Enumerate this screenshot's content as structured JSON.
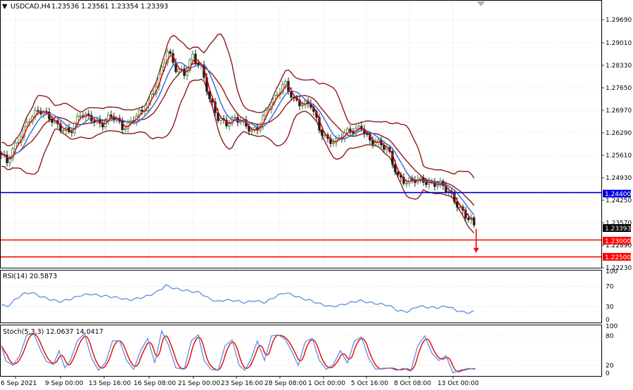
{
  "header": {
    "arrow_glyph": "▼",
    "symbol": "USDCAD,H4",
    "ohlc": "1.23536 1.23561 1.23354 1.23393"
  },
  "colors": {
    "background": "#ffffff",
    "grid": "#c0c0c0",
    "candle_up": "#2e7d32",
    "candle_down": "#1b1b1b",
    "bollinger": "#8b1a1a",
    "ma_fast": "#e60000",
    "ma_slow": "#3f6fd8",
    "support_line": "#0000dd",
    "target_line": "#ff0000",
    "rsi_line": "#5b8fe0",
    "stoch_main": "#5b8fe0",
    "stoch_signal": "#e60000"
  },
  "price_axis": {
    "ticks": [
      "1.29690",
      "1.29010",
      "1.28330",
      "1.27650",
      "1.26970",
      "1.26290",
      "1.25610",
      "1.24930",
      "1.24250",
      "1.23570",
      "1.22890",
      "1.22230"
    ],
    "ylim": [
      1.2218,
      1.3005
    ]
  },
  "level_tags": {
    "support": "1.24400",
    "current": "1.23393",
    "target1": "1.23000",
    "target2": "1.22500"
  },
  "rsi": {
    "label": "RSI(14) 20.5873",
    "ticks": [
      "100",
      "70",
      "30",
      "0"
    ],
    "ylim": [
      0,
      100
    ]
  },
  "stoch": {
    "label": "Stoch(5,3,3) 12.0637 14.0417",
    "ticks": [
      "100",
      "80",
      "20",
      "0"
    ],
    "ylim": [
      0,
      100
    ]
  },
  "time_axis": {
    "labels": [
      "6 Sep 2021",
      "9 Sep 00:00",
      "13 Sep 16:00",
      "16 Sep 08:00",
      "21 Sep 00:00",
      "23 Sep 16:00",
      "28 Sep 08:00",
      "1 Oct 00:00",
      "5 Oct 16:00",
      "8 Oct 08:00",
      "13 Oct 00:00"
    ]
  },
  "chart_data": {
    "type": "line",
    "title": "USDCAD,H4",
    "price_close_path": {
      "x": [
        "6 Sep 2021",
        "9 Sep 00:00",
        "13 Sep 16:00",
        "16 Sep 08:00",
        "21 Sep 00:00",
        "23 Sep 16:00",
        "28 Sep 08:00",
        "1 Oct 00:00",
        "5 Oct 16:00",
        "8 Oct 08:00",
        "13 Oct 00:00"
      ],
      "knots": [
        [
          0,
          1.256
        ],
        [
          10,
          1.2525
        ],
        [
          25,
          1.259
        ],
        [
          40,
          1.266
        ],
        [
          55,
          1.268
        ],
        [
          70,
          1.266
        ],
        [
          85,
          1.264
        ],
        [
          100,
          1.2615
        ],
        [
          115,
          1.267
        ],
        [
          130,
          1.2665
        ],
        [
          145,
          1.264
        ],
        [
          160,
          1.2665
        ],
        [
          175,
          1.2635
        ],
        [
          190,
          1.266
        ],
        [
          205,
          1.268
        ],
        [
          218,
          1.274
        ],
        [
          228,
          1.28
        ],
        [
          238,
          1.286
        ],
        [
          250,
          1.28
        ],
        [
          262,
          1.279
        ],
        [
          274,
          1.285
        ],
        [
          286,
          1.281
        ],
        [
          298,
          1.271
        ],
        [
          310,
          1.266
        ],
        [
          322,
          1.265
        ],
        [
          334,
          1.266
        ],
        [
          346,
          1.264
        ],
        [
          358,
          1.262
        ],
        [
          368,
          1.264
        ],
        [
          380,
          1.269
        ],
        [
          393,
          1.272
        ],
        [
          405,
          1.2765
        ],
        [
          418,
          1.272
        ],
        [
          430,
          1.27
        ],
        [
          442,
          1.2695
        ],
        [
          454,
          1.263
        ],
        [
          466,
          1.26
        ],
        [
          478,
          1.259
        ],
        [
          490,
          1.261
        ],
        [
          502,
          1.2625
        ],
        [
          514,
          1.264
        ],
        [
          526,
          1.259
        ],
        [
          540,
          1.258
        ],
        [
          552,
          1.257
        ],
        [
          566,
          1.249
        ],
        [
          578,
          1.2465
        ],
        [
          590,
          1.2475
        ],
        [
          602,
          1.248
        ],
        [
          614,
          1.247
        ],
        [
          626,
          1.246
        ],
        [
          638,
          1.244
        ],
        [
          650,
          1.241
        ],
        [
          662,
          1.2375
        ],
        [
          676,
          1.2339
        ]
      ]
    },
    "series": [
      {
        "name": "Bollinger bands (upper / middle / lower)",
        "color": "#8b1a1a"
      },
      {
        "name": "Fast MA",
        "color": "#e60000"
      },
      {
        "name": "Slow MA",
        "color": "#3f6fd8"
      }
    ],
    "horizontal_levels": [
      {
        "value": 1.244,
        "color": "#0000dd"
      },
      {
        "value": 1.23,
        "color": "#ff0000"
      },
      {
        "value": 1.225,
        "color": "#ff0000"
      }
    ],
    "forecast_arrow": {
      "from": 1.2333,
      "to": 1.2262,
      "direction": "down",
      "color": "#ff0000"
    },
    "rsi_path": [
      [
        0,
        34
      ],
      [
        10,
        30
      ],
      [
        20,
        42
      ],
      [
        32,
        55
      ],
      [
        45,
        58
      ],
      [
        58,
        50
      ],
      [
        72,
        44
      ],
      [
        86,
        40
      ],
      [
        100,
        45
      ],
      [
        114,
        52
      ],
      [
        128,
        55
      ],
      [
        142,
        52
      ],
      [
        156,
        50
      ],
      [
        170,
        47
      ],
      [
        184,
        43
      ],
      [
        198,
        47
      ],
      [
        212,
        52
      ],
      [
        224,
        60
      ],
      [
        236,
        72
      ],
      [
        248,
        66
      ],
      [
        260,
        63
      ],
      [
        272,
        60
      ],
      [
        284,
        58
      ],
      [
        296,
        47
      ],
      [
        308,
        40
      ],
      [
        320,
        43
      ],
      [
        334,
        42
      ],
      [
        348,
        38
      ],
      [
        362,
        42
      ],
      [
        376,
        38
      ],
      [
        392,
        50
      ],
      [
        405,
        58
      ],
      [
        418,
        52
      ],
      [
        430,
        46
      ],
      [
        442,
        42
      ],
      [
        456,
        35
      ],
      [
        470,
        30
      ],
      [
        484,
        33
      ],
      [
        498,
        38
      ],
      [
        512,
        42
      ],
      [
        526,
        38
      ],
      [
        540,
        35
      ],
      [
        552,
        33
      ],
      [
        566,
        22
      ],
      [
        580,
        20
      ],
      [
        594,
        31
      ],
      [
        608,
        29
      ],
      [
        622,
        28
      ],
      [
        636,
        31
      ],
      [
        650,
        22
      ],
      [
        664,
        18
      ],
      [
        676,
        20.6
      ]
    ],
    "stoch_main_knots": [
      [
        0,
        70
      ],
      [
        8,
        30
      ],
      [
        18,
        20
      ],
      [
        28,
        40
      ],
      [
        38,
        82
      ],
      [
        48,
        85
      ],
      [
        58,
        50
      ],
      [
        66,
        28
      ],
      [
        76,
        22
      ],
      [
        84,
        50
      ],
      [
        92,
        15
      ],
      [
        100,
        30
      ],
      [
        110,
        70
      ],
      [
        120,
        85
      ],
      [
        130,
        35
      ],
      [
        140,
        10
      ],
      [
        150,
        25
      ],
      [
        160,
        70
      ],
      [
        170,
        70
      ],
      [
        180,
        30
      ],
      [
        190,
        12
      ],
      [
        200,
        50
      ],
      [
        210,
        75
      ],
      [
        220,
        25
      ],
      [
        230,
        90
      ],
      [
        240,
        60
      ],
      [
        250,
        15
      ],
      [
        262,
        12
      ],
      [
        272,
        70
      ],
      [
        282,
        82
      ],
      [
        290,
        30
      ],
      [
        300,
        12
      ],
      [
        310,
        10
      ],
      [
        320,
        60
      ],
      [
        330,
        72
      ],
      [
        340,
        20
      ],
      [
        348,
        10
      ],
      [
        356,
        30
      ],
      [
        366,
        70
      ],
      [
        376,
        30
      ],
      [
        386,
        80
      ],
      [
        396,
        82
      ],
      [
        406,
        72
      ],
      [
        416,
        45
      ],
      [
        424,
        20
      ],
      [
        434,
        68
      ],
      [
        444,
        75
      ],
      [
        454,
        30
      ],
      [
        464,
        12
      ],
      [
        474,
        22
      ],
      [
        484,
        50
      ],
      [
        494,
        25
      ],
      [
        504,
        70
      ],
      [
        514,
        78
      ],
      [
        524,
        35
      ],
      [
        534,
        12
      ],
      [
        544,
        14
      ],
      [
        554,
        15
      ],
      [
        564,
        10
      ],
      [
        574,
        14
      ],
      [
        584,
        8
      ],
      [
        594,
        60
      ],
      [
        604,
        80
      ],
      [
        614,
        45
      ],
      [
        624,
        30
      ],
      [
        634,
        40
      ],
      [
        644,
        5
      ],
      [
        654,
        10
      ],
      [
        666,
        14
      ],
      [
        676,
        12
      ]
    ]
  }
}
